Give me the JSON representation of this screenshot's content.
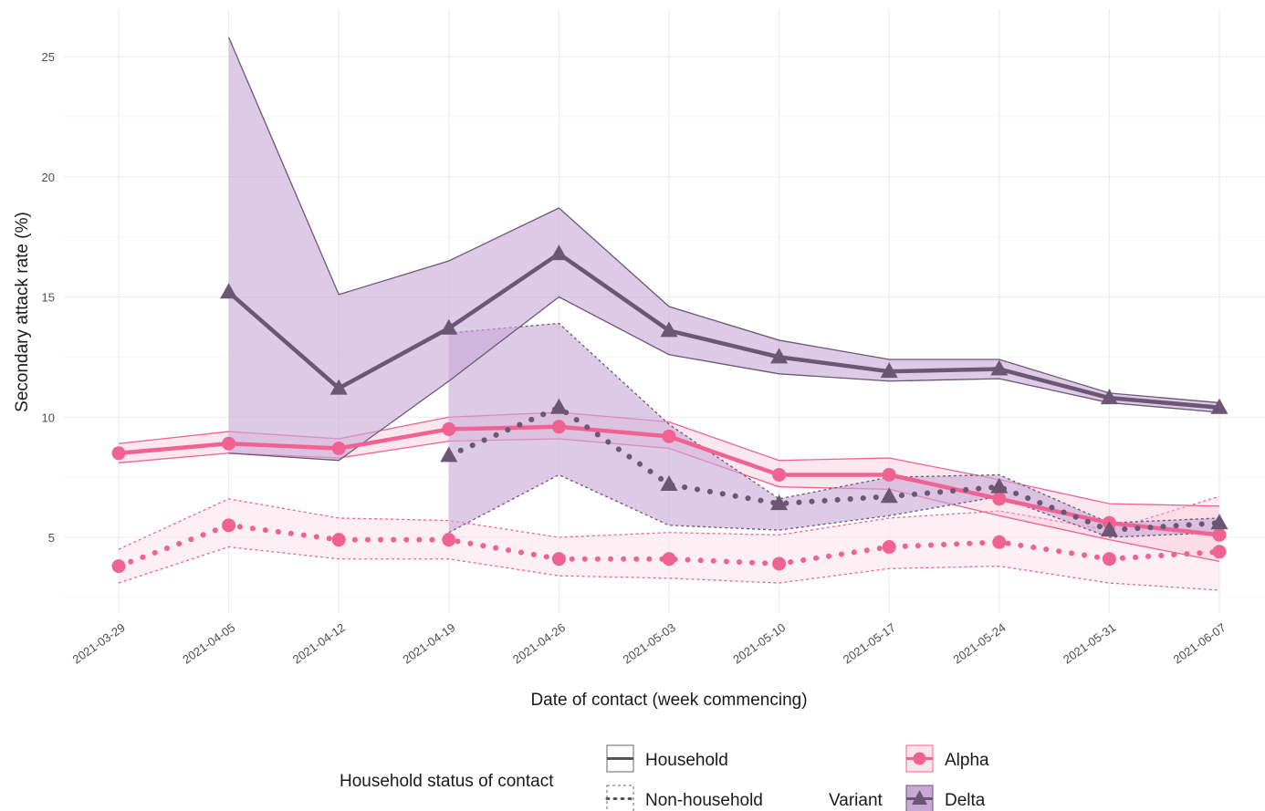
{
  "chart_data": {
    "type": "line",
    "xlabel": "Date of contact (week commencing)",
    "ylabel": "Secondary attack rate (%)",
    "x": [
      "2021-03-29",
      "2021-04-05",
      "2021-04-12",
      "2021-04-19",
      "2021-04-26",
      "2021-05-03",
      "2021-05-10",
      "2021-05-17",
      "2021-05-24",
      "2021-05-31",
      "2021-06-07"
    ],
    "ylim": [
      2.3,
      26.8
    ],
    "yticks": [
      5,
      10,
      15,
      20,
      25
    ],
    "grid": true,
    "legend_position": "bottom",
    "series": [
      {
        "name": "Delta Household",
        "variant": "Delta",
        "household_status": "Household",
        "color": "#6b5773",
        "fill": "#c8a9d6",
        "values": [
          null,
          15.2,
          11.2,
          13.7,
          16.8,
          13.6,
          12.5,
          11.9,
          12.0,
          10.8,
          10.4
        ],
        "lower": [
          null,
          8.5,
          8.2,
          11.5,
          15.0,
          12.6,
          11.8,
          11.5,
          11.6,
          10.6,
          10.2
        ],
        "upper": [
          null,
          25.8,
          15.1,
          16.5,
          18.7,
          14.6,
          13.2,
          12.4,
          12.4,
          11.0,
          10.6
        ]
      },
      {
        "name": "Delta Non-household",
        "variant": "Delta",
        "household_status": "Non-household",
        "color": "#6b5773",
        "fill": "#c8a9d6",
        "values": [
          null,
          null,
          null,
          8.4,
          10.4,
          7.2,
          6.4,
          6.7,
          7.1,
          5.3,
          5.6
        ],
        "lower": [
          null,
          null,
          null,
          5.2,
          7.6,
          5.5,
          5.3,
          5.9,
          6.7,
          5.0,
          5.2
        ],
        "upper": [
          null,
          null,
          null,
          13.5,
          13.9,
          9.7,
          6.6,
          7.5,
          7.6,
          5.6,
          5.8
        ]
      },
      {
        "name": "Alpha Household",
        "variant": "Alpha",
        "household_status": "Household",
        "color": "#f06292",
        "fill": "#f8bbd0",
        "values": [
          8.5,
          8.9,
          8.7,
          9.5,
          9.6,
          9.2,
          7.6,
          7.6,
          6.6,
          5.6,
          5.1
        ],
        "lower": [
          8.1,
          8.5,
          8.3,
          9.0,
          9.1,
          8.7,
          7.1,
          7.0,
          5.9,
          4.9,
          4.0
        ],
        "upper": [
          8.9,
          9.4,
          9.1,
          10.0,
          10.2,
          9.8,
          8.2,
          8.3,
          7.4,
          6.4,
          6.3
        ]
      },
      {
        "name": "Alpha Non-household",
        "variant": "Alpha",
        "household_status": "Non-household",
        "color": "#f06292",
        "fill": "#fce4ec",
        "values": [
          3.8,
          5.5,
          4.9,
          4.9,
          4.1,
          4.1,
          3.9,
          4.6,
          4.8,
          4.1,
          4.4
        ],
        "lower": [
          3.1,
          4.6,
          4.1,
          4.1,
          3.4,
          3.3,
          3.1,
          3.7,
          3.8,
          3.1,
          2.8
        ],
        "upper": [
          4.5,
          6.6,
          5.8,
          5.7,
          5.0,
          5.2,
          5.1,
          5.8,
          6.1,
          5.3,
          6.7
        ]
      }
    ]
  },
  "legend": {
    "household_title": "Household status of contact",
    "household_items": [
      "Household",
      "Non-household"
    ],
    "variant_title": "Variant",
    "variant_items": [
      {
        "label": "Alpha",
        "color": "#f06292",
        "fill": "#f8bbd0",
        "shape": "circle"
      },
      {
        "label": "Delta",
        "color": "#6b5773",
        "fill": "#c8a9d6",
        "shape": "triangle"
      }
    ]
  }
}
